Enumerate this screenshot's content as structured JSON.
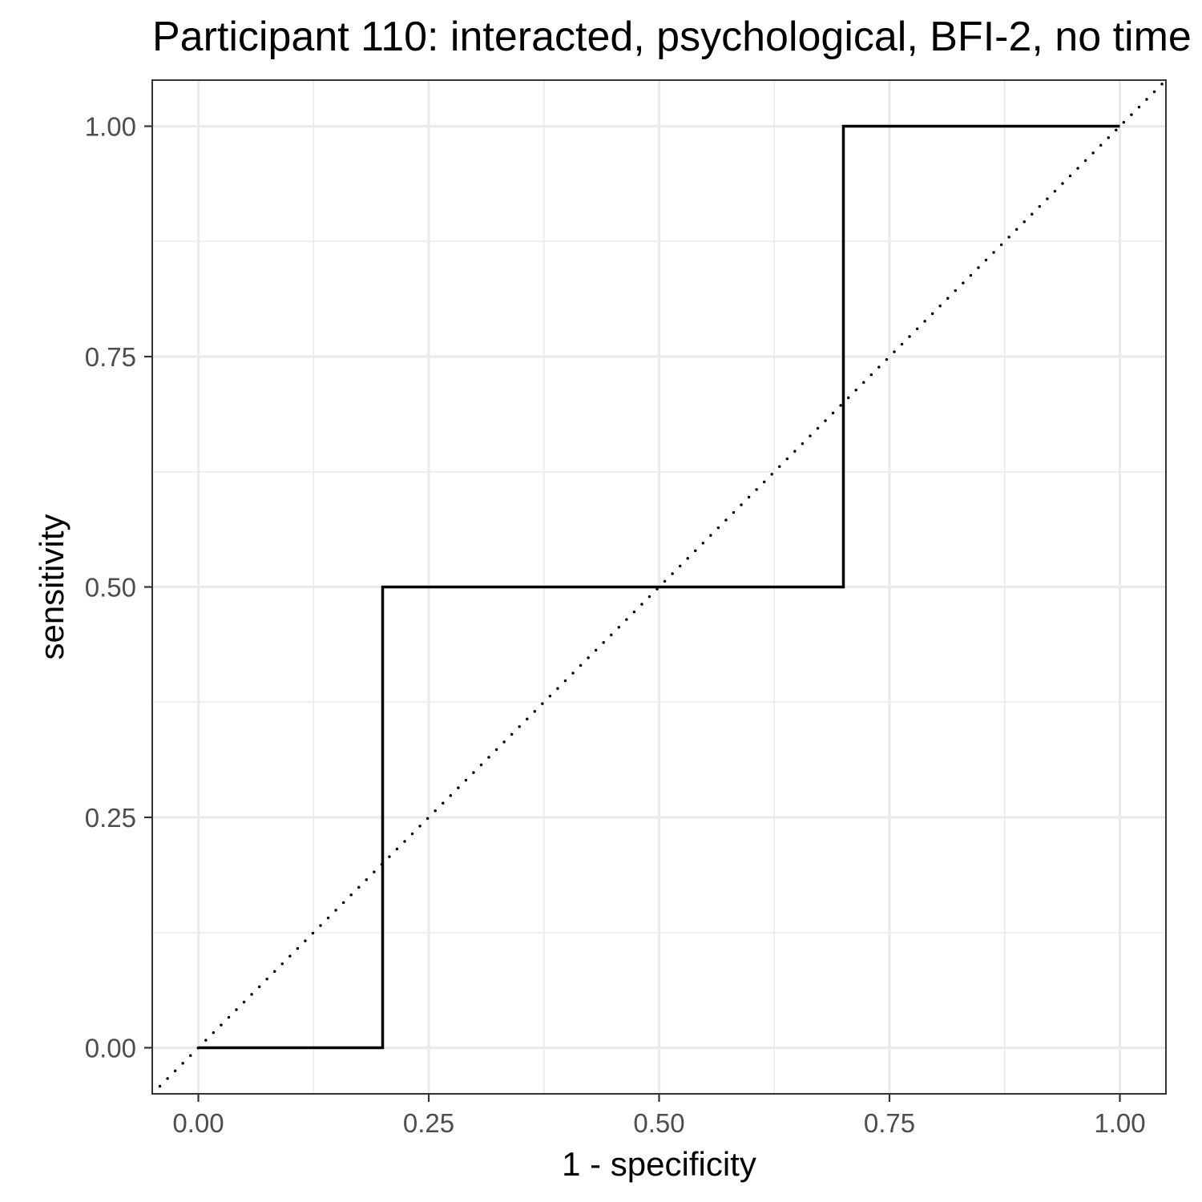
{
  "chart_data": {
    "type": "line",
    "title": "Participant 110: interacted, psychological, BFI-2, no time",
    "xlabel": "1 - specificity",
    "ylabel": "sensitivity",
    "xlim": [
      -0.05,
      1.05
    ],
    "ylim": [
      -0.05,
      1.05
    ],
    "x_ticks": [
      "0.00",
      "0.25",
      "0.50",
      "0.75",
      "1.00"
    ],
    "y_ticks": [
      "0.00",
      "0.25",
      "0.50",
      "0.75",
      "1.00"
    ],
    "grid": true,
    "series": [
      {
        "style": "solid-step",
        "color": "#000000",
        "points": [
          [
            0.0,
            0.0
          ],
          [
            0.2,
            0.0
          ],
          [
            0.2,
            0.5
          ],
          [
            0.7,
            0.5
          ],
          [
            0.7,
            1.0
          ],
          [
            1.0,
            1.0
          ]
        ]
      }
    ],
    "reference_line": {
      "style": "dotted",
      "color": "#000000",
      "from": [
        -0.05,
        -0.05
      ],
      "to": [
        1.05,
        1.05
      ]
    }
  }
}
